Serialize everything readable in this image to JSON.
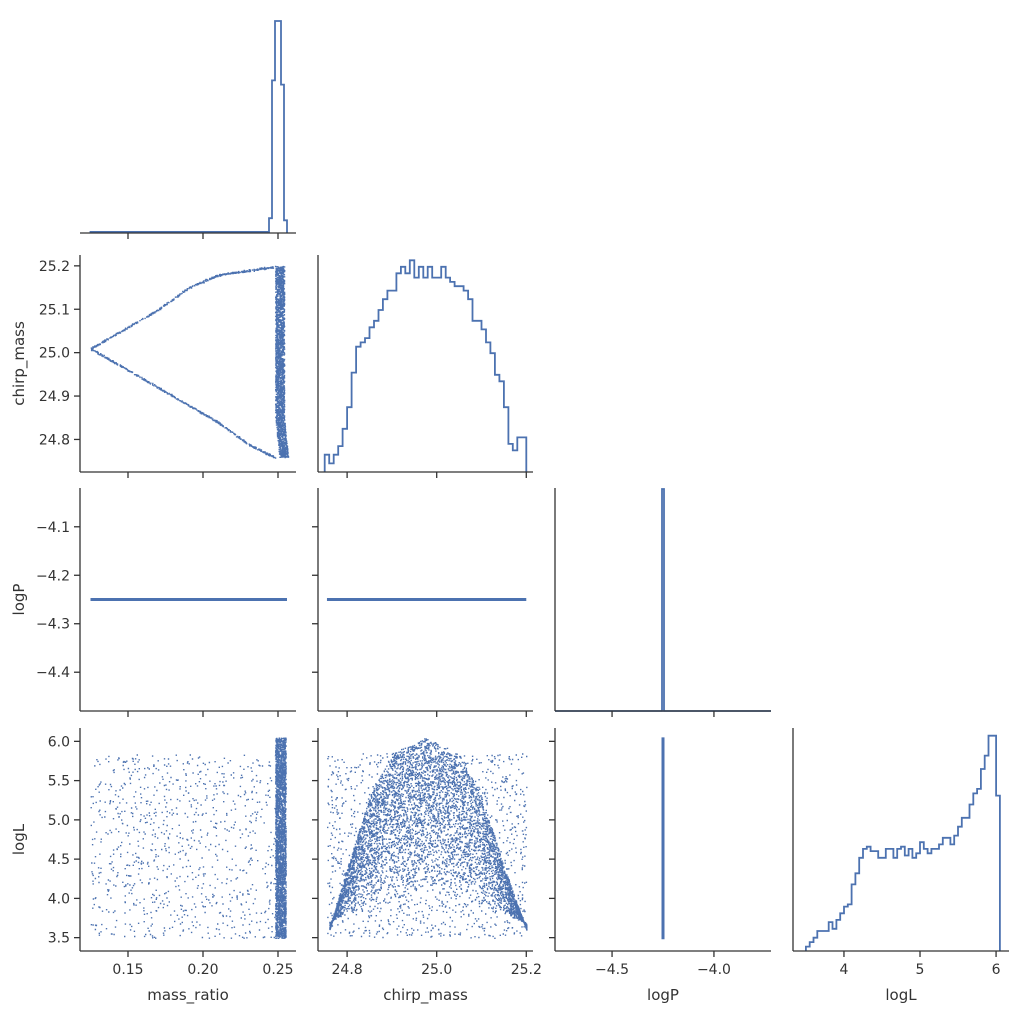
{
  "figure": {
    "type": "corner_plot",
    "parameters": [
      "mass_ratio",
      "chirp_mass",
      "logP",
      "logL"
    ],
    "series_color": "#4c72b0",
    "axis_color": "#333333"
  },
  "chart_data": [
    {
      "type": "histogram",
      "panel": "mass_ratio",
      "xlim": [
        0.118,
        0.262
      ],
      "bins": [
        {
          "x0": 0.125,
          "x1": 0.244,
          "value": 0.005
        },
        {
          "x0": 0.244,
          "x1": 0.246,
          "value": 0.07
        },
        {
          "x0": 0.246,
          "x1": 0.248,
          "value": 0.72
        },
        {
          "x0": 0.248,
          "x1": 0.25,
          "value": 1.0
        },
        {
          "x0": 0.25,
          "x1": 0.252,
          "value": 1.0
        },
        {
          "x0": 0.252,
          "x1": 0.254,
          "value": 0.7
        },
        {
          "x0": 0.254,
          "x1": 0.256,
          "value": 0.06
        }
      ]
    },
    {
      "type": "histogram",
      "panel": "chirp_mass",
      "xlim": [
        24.735,
        25.215
      ],
      "bin_edges": [
        24.75,
        24.76,
        24.77,
        24.78,
        24.79,
        24.8,
        24.81,
        24.82,
        24.83,
        24.84,
        24.85,
        24.86,
        24.87,
        24.88,
        24.89,
        24.9,
        24.91,
        24.92,
        24.93,
        24.94,
        24.95,
        24.96,
        24.97,
        24.98,
        24.99,
        25.0,
        25.01,
        25.02,
        25.03,
        25.04,
        25.05,
        25.06,
        25.07,
        25.08,
        25.09,
        25.1,
        25.11,
        25.12,
        25.13,
        25.14,
        25.15,
        25.16,
        25.17,
        25.18,
        25.19,
        25.2
      ],
      "values": [
        0.08,
        0.04,
        0.08,
        0.12,
        0.2,
        0.3,
        0.46,
        0.58,
        0.6,
        0.62,
        0.67,
        0.7,
        0.75,
        0.8,
        0.84,
        0.84,
        0.92,
        0.95,
        0.92,
        0.98,
        0.9,
        0.95,
        0.9,
        0.95,
        0.9,
        0.9,
        0.95,
        0.9,
        0.88,
        0.86,
        0.86,
        0.84,
        0.8,
        0.7,
        0.7,
        0.66,
        0.6,
        0.55,
        0.45,
        0.42,
        0.3,
        0.13,
        0.1,
        0.16,
        0.16
      ]
    },
    {
      "type": "histogram",
      "panel": "logP",
      "xlim": [
        -4.78,
        -3.72
      ],
      "bins": [
        {
          "x0": -4.78,
          "x1": -4.255,
          "value": 0.0
        },
        {
          "x0": -4.255,
          "x1": -4.245,
          "value": 1.0
        },
        {
          "x0": -4.245,
          "x1": -3.72,
          "value": 0.0
        }
      ]
    },
    {
      "type": "histogram",
      "panel": "logL",
      "xlim": [
        3.33,
        6.17
      ],
      "bin_edges": [
        3.5,
        3.55,
        3.6,
        3.65,
        3.7,
        3.75,
        3.8,
        3.85,
        3.9,
        3.95,
        4.0,
        4.05,
        4.1,
        4.15,
        4.2,
        4.25,
        4.3,
        4.35,
        4.4,
        4.45,
        4.5,
        4.55,
        4.6,
        4.65,
        4.7,
        4.75,
        4.8,
        4.85,
        4.9,
        4.95,
        5.0,
        5.05,
        5.1,
        5.15,
        5.2,
        5.25,
        5.3,
        5.35,
        5.4,
        5.45,
        5.5,
        5.55,
        5.6,
        5.65,
        5.7,
        5.75,
        5.8,
        5.85,
        5.9,
        5.95,
        6.0,
        6.05
      ],
      "values": [
        0.02,
        0.04,
        0.06,
        0.09,
        0.09,
        0.09,
        0.13,
        0.1,
        0.14,
        0.17,
        0.2,
        0.21,
        0.3,
        0.35,
        0.42,
        0.46,
        0.47,
        0.45,
        0.45,
        0.42,
        0.42,
        0.46,
        0.46,
        0.42,
        0.46,
        0.47,
        0.43,
        0.46,
        0.42,
        0.44,
        0.49,
        0.46,
        0.44,
        0.46,
        0.46,
        0.48,
        0.51,
        0.51,
        0.48,
        0.52,
        0.56,
        0.6,
        0.6,
        0.66,
        0.71,
        0.73,
        0.82,
        0.88,
        0.97,
        0.97,
        0.7
      ]
    },
    {
      "type": "scatter",
      "panel": "mass_ratio vs chirp_mass",
      "xlim": [
        0.118,
        0.262
      ],
      "ylim": [
        24.725,
        25.225
      ],
      "description_points": {
        "upper_curve": [
          [
            0.125,
            25.01
          ],
          [
            0.15,
            25.06
          ],
          [
            0.17,
            25.1
          ],
          [
            0.19,
            25.15
          ],
          [
            0.21,
            25.18
          ],
          [
            0.23,
            25.19
          ],
          [
            0.25,
            25.2
          ]
        ],
        "lower_curve": [
          [
            0.125,
            25.01
          ],
          [
            0.15,
            24.96
          ],
          [
            0.17,
            24.92
          ],
          [
            0.19,
            24.88
          ],
          [
            0.21,
            24.84
          ],
          [
            0.23,
            24.79
          ],
          [
            0.25,
            24.755
          ]
        ],
        "dense_band": {
          "x_range": [
            0.248,
            0.256
          ],
          "y_range": [
            24.76,
            25.2
          ]
        }
      }
    },
    {
      "type": "scatter",
      "panel": "mass_ratio vs logP",
      "xlim": [
        0.118,
        0.262
      ],
      "ylim": [
        -4.48,
        -4.02
      ],
      "line": {
        "x_range": [
          0.125,
          0.256
        ],
        "y": -4.25
      }
    },
    {
      "type": "scatter",
      "panel": "chirp_mass vs logP",
      "xlim": [
        24.735,
        25.215
      ],
      "ylim": [
        -4.48,
        -4.02
      ],
      "line": {
        "x_range": [
          24.755,
          25.2
        ],
        "y": -4.25
      }
    },
    {
      "type": "scatter",
      "panel": "mass_ratio vs logL",
      "xlim": [
        0.118,
        0.262
      ],
      "ylim": [
        3.33,
        6.17
      ],
      "description_points": {
        "uniform_region": {
          "x_range": [
            0.125,
            0.248
          ],
          "y_range": [
            3.5,
            5.85
          ]
        },
        "dense_band": {
          "x_range": [
            0.248,
            0.256
          ],
          "y_range": [
            3.5,
            6.05
          ]
        }
      }
    },
    {
      "type": "scatter",
      "panel": "chirp_mass vs logL",
      "xlim": [
        24.735,
        25.215
      ],
      "ylim": [
        3.33,
        6.17
      ],
      "description_points": {
        "background": {
          "x_range": [
            24.755,
            25.2
          ],
          "y_range": [
            3.5,
            5.85
          ]
        },
        "arch_top": [
          [
            24.76,
            3.6
          ],
          [
            24.8,
            4.4
          ],
          [
            24.85,
            5.3
          ],
          [
            24.9,
            5.85
          ],
          [
            24.975,
            6.05
          ],
          [
            25.05,
            5.85
          ],
          [
            25.1,
            5.3
          ],
          [
            25.15,
            4.4
          ],
          [
            25.2,
            3.6
          ]
        ]
      }
    },
    {
      "type": "scatter",
      "panel": "logP vs logL",
      "xlim": [
        -4.78,
        -3.72
      ],
      "ylim": [
        3.33,
        6.17
      ],
      "line": {
        "x": -4.25,
        "y_range": [
          3.48,
          6.05
        ]
      }
    }
  ],
  "axes": {
    "mass_ratio": {
      "label": "mass_ratio",
      "ticks": [
        {
          "value": 0.15,
          "label": "0.15"
        },
        {
          "value": 0.2,
          "label": "0.20"
        },
        {
          "value": 0.25,
          "label": "0.25"
        }
      ]
    },
    "chirp_mass": {
      "label": "chirp_mass",
      "ticks": [
        {
          "value": 24.8,
          "label": "24.8"
        },
        {
          "value": 24.9,
          "label": "24.9"
        },
        {
          "value": 25.0,
          "label": "25.0"
        },
        {
          "value": 25.1,
          "label": "25.1"
        },
        {
          "value": 25.2,
          "label": "25.2"
        }
      ],
      "x_ticks": [
        {
          "value": 24.8,
          "label": "24.8"
        },
        {
          "value": 25.0,
          "label": "25.0"
        },
        {
          "value": 25.2,
          "label": "25.2"
        }
      ]
    },
    "logP": {
      "label": "logP",
      "ticks": [
        {
          "value": -4.1,
          "label": "−4.1"
        },
        {
          "value": -4.2,
          "label": "−4.2"
        },
        {
          "value": -4.3,
          "label": "−4.3"
        },
        {
          "value": -4.4,
          "label": "−4.4"
        }
      ],
      "x_ticks": [
        {
          "value": -4.5,
          "label": "−4.5"
        },
        {
          "value": -4.0,
          "label": "−4.0"
        }
      ]
    },
    "logL": {
      "label": "logL",
      "ticks": [
        {
          "value": 6.0,
          "label": "6.0"
        },
        {
          "value": 5.5,
          "label": "5.5"
        },
        {
          "value": 5.0,
          "label": "5.0"
        },
        {
          "value": 4.5,
          "label": "4.5"
        },
        {
          "value": 4.0,
          "label": "4.0"
        },
        {
          "value": 3.5,
          "label": "3.5"
        }
      ],
      "x_ticks": [
        {
          "value": 4,
          "label": "4"
        },
        {
          "value": 5,
          "label": "5"
        },
        {
          "value": 6,
          "label": "6"
        }
      ]
    }
  }
}
